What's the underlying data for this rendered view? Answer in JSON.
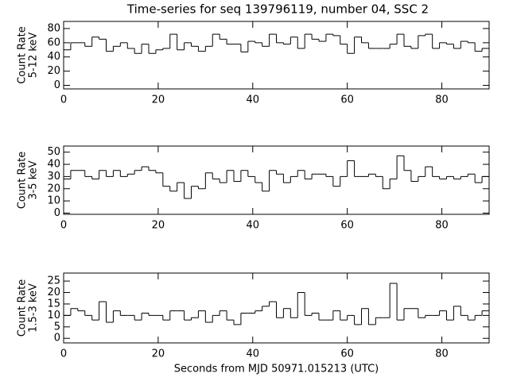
{
  "chart_data": [
    {
      "type": "histogram",
      "title": "Time-series for seq 139796119, number 04, SSC 2",
      "ylabel": [
        "Count Rate",
        "5-12 keV"
      ],
      "color": "#000000",
      "bins": [
        0,
        1.5,
        3,
        4.5,
        6,
        7.5,
        9,
        10.5,
        12,
        13.5,
        15,
        16.5,
        18,
        19.5,
        21,
        22.5,
        24,
        25.5,
        27,
        28.5,
        30,
        31.5,
        33,
        34.5,
        36,
        37.5,
        39,
        40.5,
        42,
        43.5,
        45,
        46.5,
        48,
        49.5,
        51,
        52.5,
        54,
        55.5,
        57,
        58.5,
        60,
        61.5,
        63,
        64.5,
        66,
        67.5,
        69,
        70.5,
        72,
        73.5,
        75,
        76.5,
        78,
        79.5,
        81,
        82.5,
        84,
        85.5,
        87,
        88.5,
        90
      ],
      "values": [
        50,
        60,
        60,
        55,
        68,
        65,
        48,
        55,
        60,
        52,
        45,
        58,
        45,
        50,
        52,
        72,
        50,
        60,
        55,
        48,
        55,
        72,
        65,
        58,
        58,
        47,
        62,
        60,
        55,
        72,
        60,
        58,
        68,
        52,
        72,
        65,
        62,
        72,
        70,
        58,
        45,
        68,
        60,
        52,
        52,
        52,
        58,
        72,
        55,
        52,
        70,
        72,
        52,
        60,
        58,
        52,
        62,
        60,
        48,
        52
      ],
      "xlim": [
        0,
        90
      ],
      "xticks": [
        0,
        20,
        40,
        60,
        80
      ],
      "ylim": [
        -5,
        90
      ],
      "yticks": [
        0,
        20,
        40,
        60,
        80
      ]
    },
    {
      "type": "histogram",
      "ylabel": [
        "Count Rate",
        "3-5 keV"
      ],
      "color": "#000000",
      "bins": [
        0,
        1.5,
        3,
        4.5,
        6,
        7.5,
        9,
        10.5,
        12,
        13.5,
        15,
        16.5,
        18,
        19.5,
        21,
        22.5,
        24,
        25.5,
        27,
        28.5,
        30,
        31.5,
        33,
        34.5,
        36,
        37.5,
        39,
        40.5,
        42,
        43.5,
        45,
        46.5,
        48,
        49.5,
        51,
        52.5,
        54,
        55.5,
        57,
        58.5,
        60,
        61.5,
        63,
        64.5,
        66,
        67.5,
        69,
        70.5,
        72,
        73.5,
        75,
        76.5,
        78,
        79.5,
        81,
        82.5,
        84,
        85.5,
        87,
        88.5,
        90
      ],
      "values": [
        28,
        35,
        35,
        30,
        28,
        35,
        30,
        35,
        30,
        32,
        35,
        38,
        35,
        33,
        22,
        18,
        25,
        12,
        22,
        20,
        33,
        28,
        25,
        35,
        26,
        35,
        30,
        25,
        18,
        35,
        32,
        25,
        30,
        35,
        28,
        32,
        32,
        30,
        22,
        30,
        43,
        30,
        30,
        32,
        30,
        20,
        28,
        47,
        35,
        26,
        30,
        38,
        30,
        28,
        30,
        28,
        30,
        32,
        25,
        30
      ],
      "xlim": [
        0,
        90
      ],
      "xticks": [
        0,
        20,
        40,
        60,
        80
      ],
      "ylim": [
        -1,
        55
      ],
      "yticks": [
        0,
        10,
        20,
        30,
        40,
        50
      ]
    },
    {
      "type": "histogram",
      "ylabel": [
        "Count Rate",
        "1.5-3 keV"
      ],
      "xlabel": "Seconds from MJD 50971.015213 (UTC)",
      "color": "#000000",
      "bins": [
        0,
        1.5,
        3,
        4.5,
        6,
        7.5,
        9,
        10.5,
        12,
        13.5,
        15,
        16.5,
        18,
        19.5,
        21,
        22.5,
        24,
        25.5,
        27,
        28.5,
        30,
        31.5,
        33,
        34.5,
        36,
        37.5,
        39,
        40.5,
        42,
        43.5,
        45,
        46.5,
        48,
        49.5,
        51,
        52.5,
        54,
        55.5,
        57,
        58.5,
        60,
        61.5,
        63,
        64.5,
        66,
        67.5,
        69,
        70.5,
        72,
        73.5,
        75,
        76.5,
        78,
        79.5,
        81,
        82.5,
        84,
        85.5,
        87,
        88.5,
        90
      ],
      "values": [
        10,
        13,
        12,
        10,
        8,
        16,
        7,
        12,
        10,
        10,
        8,
        11,
        10,
        10,
        8,
        12,
        12,
        8,
        9,
        12,
        7,
        10,
        12,
        8,
        6,
        11,
        11,
        12,
        14,
        16,
        9,
        13,
        9,
        20,
        10,
        11,
        8,
        8,
        12,
        8,
        10,
        6,
        13,
        6,
        9,
        9,
        24,
        8,
        13,
        13,
        9,
        10,
        10,
        12,
        8,
        14,
        10,
        8,
        10,
        12
      ],
      "xlim": [
        0,
        90
      ],
      "xticks": [
        0,
        20,
        40,
        60,
        80
      ],
      "ylim": [
        -2,
        28.5
      ],
      "yticks": [
        0,
        5,
        10,
        15,
        20,
        25
      ]
    }
  ]
}
